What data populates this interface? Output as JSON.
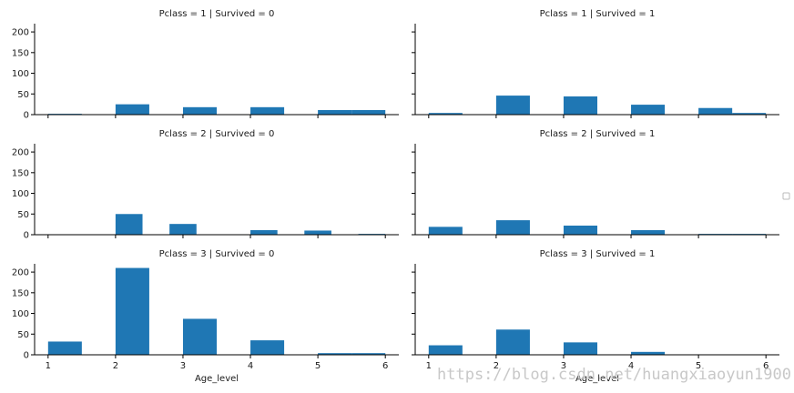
{
  "watermark": "https://blog.csdn.net/huangxiaoyun1900",
  "colors": {
    "bar": "#1f77b4",
    "axis": "#000000",
    "text": "#1a1a1a"
  },
  "chart_data": {
    "type": "bar",
    "layout": "facet-grid",
    "rows": 3,
    "cols": 2,
    "xlabel": "Age_level",
    "ylim": [
      0,
      220
    ],
    "xlim": [
      0.8,
      6.2
    ],
    "yticks": [
      0,
      50,
      100,
      150,
      200
    ],
    "xticks": [
      1,
      2,
      3,
      4,
      5,
      6
    ],
    "grid": false,
    "legend": "right (empty)",
    "panels": [
      {
        "title": "Pclass = 1 | Survived = 0",
        "bins": [
          {
            "x0": 1.0,
            "x1": 1.5,
            "y": 2
          },
          {
            "x0": 2.0,
            "x1": 2.5,
            "y": 25
          },
          {
            "x0": 3.0,
            "x1": 3.5,
            "y": 18
          },
          {
            "x0": 4.0,
            "x1": 4.5,
            "y": 18
          },
          {
            "x0": 5.0,
            "x1": 5.5,
            "y": 11
          },
          {
            "x0": 5.5,
            "x1": 6.0,
            "y": 11
          }
        ]
      },
      {
        "title": "Pclass = 1 | Survived = 1",
        "bins": [
          {
            "x0": 1.0,
            "x1": 1.5,
            "y": 4
          },
          {
            "x0": 2.0,
            "x1": 2.5,
            "y": 46
          },
          {
            "x0": 3.0,
            "x1": 3.5,
            "y": 44
          },
          {
            "x0": 4.0,
            "x1": 4.5,
            "y": 24
          },
          {
            "x0": 5.0,
            "x1": 5.5,
            "y": 16
          },
          {
            "x0": 5.5,
            "x1": 6.0,
            "y": 4
          }
        ]
      },
      {
        "title": "Pclass = 2 | Survived = 0",
        "bins": [
          {
            "x0": 2.0,
            "x1": 2.4,
            "y": 50
          },
          {
            "x0": 2.8,
            "x1": 3.2,
            "y": 26
          },
          {
            "x0": 4.0,
            "x1": 4.4,
            "y": 11
          },
          {
            "x0": 4.8,
            "x1": 5.2,
            "y": 10
          },
          {
            "x0": 5.6,
            "x1": 6.0,
            "y": 2
          }
        ]
      },
      {
        "title": "Pclass = 2 | Survived = 1",
        "bins": [
          {
            "x0": 1.0,
            "x1": 1.5,
            "y": 19
          },
          {
            "x0": 2.0,
            "x1": 2.5,
            "y": 35
          },
          {
            "x0": 3.0,
            "x1": 3.5,
            "y": 22
          },
          {
            "x0": 4.0,
            "x1": 4.5,
            "y": 11
          },
          {
            "x0": 5.0,
            "x1": 5.5,
            "y": 2
          },
          {
            "x0": 5.5,
            "x1": 6.0,
            "y": 2
          }
        ]
      },
      {
        "title": "Pclass = 3 | Survived = 0",
        "bins": [
          {
            "x0": 1.0,
            "x1": 1.5,
            "y": 32
          },
          {
            "x0": 2.0,
            "x1": 2.5,
            "y": 210
          },
          {
            "x0": 3.0,
            "x1": 3.5,
            "y": 87
          },
          {
            "x0": 4.0,
            "x1": 4.5,
            "y": 35
          },
          {
            "x0": 5.0,
            "x1": 5.5,
            "y": 4
          },
          {
            "x0": 5.5,
            "x1": 6.0,
            "y": 4
          }
        ]
      },
      {
        "title": "Pclass = 3 | Survived = 1",
        "bins": [
          {
            "x0": 1.0,
            "x1": 1.5,
            "y": 23
          },
          {
            "x0": 2.0,
            "x1": 2.5,
            "y": 61
          },
          {
            "x0": 3.0,
            "x1": 3.5,
            "y": 30
          },
          {
            "x0": 4.0,
            "x1": 4.5,
            "y": 7
          }
        ]
      }
    ]
  }
}
